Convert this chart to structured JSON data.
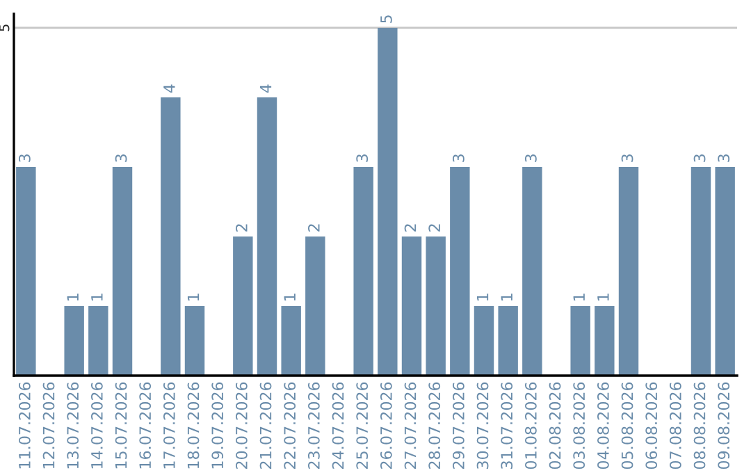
{
  "chart_data": {
    "type": "bar",
    "categories": [
      "11.07.2026",
      "12.07.2026",
      "13.07.2026",
      "14.07.2026",
      "15.07.2026",
      "16.07.2026",
      "17.07.2026",
      "18.07.2026",
      "19.07.2026",
      "20.07.2026",
      "21.07.2026",
      "22.07.2026",
      "23.07.2026",
      "24.07.2026",
      "25.07.2026",
      "26.07.2026",
      "27.07.2026",
      "28.07.2026",
      "29.07.2026",
      "30.07.2026",
      "31.07.2026",
      "01.08.2026",
      "02.08.2026",
      "03.08.2026",
      "04.08.2026",
      "05.08.2026",
      "06.08.2026",
      "07.08.2026",
      "08.08.2026",
      "09.08.2026"
    ],
    "values": [
      3,
      0,
      1,
      1,
      3,
      0,
      4,
      1,
      0,
      2,
      4,
      1,
      2,
      0,
      3,
      5,
      2,
      2,
      3,
      1,
      1,
      3,
      0,
      1,
      1,
      3,
      0,
      0,
      3,
      3
    ],
    "value_labels": [
      "3",
      null,
      "1",
      "1",
      "3",
      null,
      "4",
      "1",
      null,
      "2",
      "4",
      "1",
      "2",
      null,
      "3",
      "5",
      "2",
      "2",
      "3",
      "1",
      "1",
      "3",
      null,
      "1",
      "1",
      "3",
      null,
      null,
      "3",
      "3"
    ],
    "color": "#6a8caa",
    "ylim": [
      0,
      5.2
    ],
    "yticks": [
      5
    ],
    "grid": "y"
  }
}
